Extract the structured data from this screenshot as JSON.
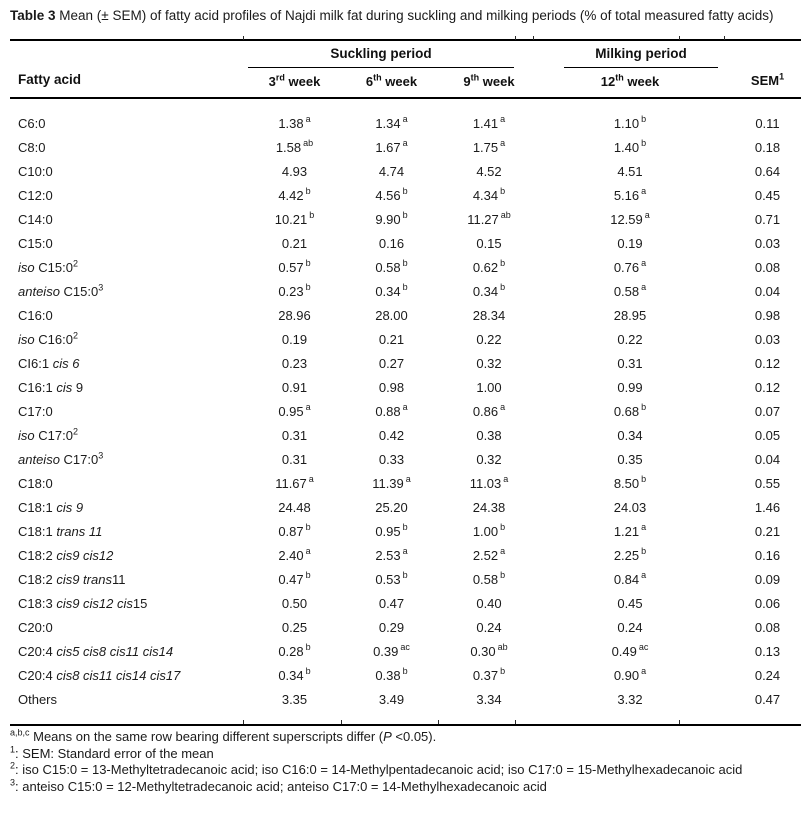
{
  "page": {
    "background": "#ffffff",
    "text_color": "#1a1a1a",
    "rule_color": "#000000"
  },
  "title": {
    "bold": "Table 3",
    "rest": " Mean (± SEM) of fatty acid profiles of Najdi milk fat during suckling and milking periods (% of total measured fatty acids)"
  },
  "table": {
    "header": {
      "fatty_acid": "Fatty acid",
      "groups": [
        {
          "label": "Suckling period",
          "span": 3
        },
        {
          "label": "Milking period",
          "span": 1
        }
      ],
      "weeks": [
        [
          {
            "t": "3"
          },
          {
            "t": "rd",
            "sup": true
          },
          {
            "t": " week"
          }
        ],
        [
          {
            "t": "6"
          },
          {
            "t": "th",
            "sup": true
          },
          {
            "t": " week"
          }
        ],
        [
          {
            "t": "9"
          },
          {
            "t": "th",
            "sup": true
          },
          {
            "t": " week"
          }
        ],
        [
          {
            "t": "12"
          },
          {
            "t": "th",
            "sup": true
          },
          {
            "t": " week"
          }
        ]
      ],
      "sem": [
        {
          "t": "SEM"
        },
        {
          "t": "1",
          "sup": true
        }
      ]
    },
    "rows": [
      {
        "label": [
          {
            "t": "C6:0"
          }
        ],
        "cells": [
          {
            "v": "1.38",
            "sup": "a"
          },
          {
            "v": "1.34",
            "sup": "a"
          },
          {
            "v": "1.41",
            "sup": "a"
          },
          {
            "v": "1.10",
            "sup": "b"
          },
          {
            "v": "0.11"
          }
        ]
      },
      {
        "label": [
          {
            "t": "C8:0"
          }
        ],
        "cells": [
          {
            "v": "1.58",
            "sup": "ab"
          },
          {
            "v": "1.67",
            "sup": "a"
          },
          {
            "v": "1.75",
            "sup": "a"
          },
          {
            "v": "1.40",
            "sup": "b"
          },
          {
            "v": "0.18"
          }
        ]
      },
      {
        "label": [
          {
            "t": "C10:0"
          }
        ],
        "cells": [
          {
            "v": "4.93"
          },
          {
            "v": "4.74"
          },
          {
            "v": "4.52"
          },
          {
            "v": "4.51"
          },
          {
            "v": "0.64"
          }
        ]
      },
      {
        "label": [
          {
            "t": "C12:0"
          }
        ],
        "cells": [
          {
            "v": "4.42",
            "sup": "b"
          },
          {
            "v": "4.56",
            "sup": "b"
          },
          {
            "v": "4.34",
            "sup": "b"
          },
          {
            "v": "5.16",
            "sup": "a"
          },
          {
            "v": "0.45"
          }
        ]
      },
      {
        "label": [
          {
            "t": "C14:0"
          }
        ],
        "cells": [
          {
            "v": "10.21",
            "sup": "b"
          },
          {
            "v": "9.90",
            "sup": "b"
          },
          {
            "v": "11.27",
            "sup": "ab"
          },
          {
            "v": "12.59",
            "sup": "a"
          },
          {
            "v": "0.71"
          }
        ]
      },
      {
        "label": [
          {
            "t": "C15:0"
          }
        ],
        "cells": [
          {
            "v": "0.21"
          },
          {
            "v": "0.16"
          },
          {
            "v": "0.15"
          },
          {
            "v": "0.19"
          },
          {
            "v": "0.03"
          }
        ]
      },
      {
        "label": [
          {
            "t": "iso ",
            "i": true
          },
          {
            "t": "C15:0"
          },
          {
            "t": "2",
            "sup": true
          }
        ],
        "cells": [
          {
            "v": "0.57",
            "sup": "b"
          },
          {
            "v": "0.58",
            "sup": "b"
          },
          {
            "v": "0.62",
            "sup": "b"
          },
          {
            "v": "0.76",
            "sup": "a"
          },
          {
            "v": "0.08"
          }
        ]
      },
      {
        "label": [
          {
            "t": "anteiso ",
            "i": true
          },
          {
            "t": "C15:0"
          },
          {
            "t": "3",
            "sup": true
          }
        ],
        "cells": [
          {
            "v": "0.23",
            "sup": "b"
          },
          {
            "v": "0.34",
            "sup": "b"
          },
          {
            "v": "0.34",
            "sup": "b"
          },
          {
            "v": "0.58",
            "sup": "a"
          },
          {
            "v": "0.04"
          }
        ]
      },
      {
        "label": [
          {
            "t": "C16:0"
          }
        ],
        "cells": [
          {
            "v": "28.96"
          },
          {
            "v": "28.00"
          },
          {
            "v": "28.34"
          },
          {
            "v": "28.95"
          },
          {
            "v": "0.98"
          }
        ]
      },
      {
        "label": [
          {
            "t": "iso ",
            "i": true
          },
          {
            "t": "C16:0"
          },
          {
            "t": "2",
            "sup": true
          }
        ],
        "cells": [
          {
            "v": "0.19"
          },
          {
            "v": "0.21"
          },
          {
            "v": "0.22"
          },
          {
            "v": "0.22"
          },
          {
            "v": "0.03"
          }
        ]
      },
      {
        "label": [
          {
            "t": "CI6:1 "
          },
          {
            "t": "cis 6",
            "i": true
          }
        ],
        "cells": [
          {
            "v": "0.23"
          },
          {
            "v": "0.27"
          },
          {
            "v": "0.32"
          },
          {
            "v": "0.31"
          },
          {
            "v": "0.12"
          }
        ]
      },
      {
        "label": [
          {
            "t": "C16:1 "
          },
          {
            "t": "cis",
            "i": true
          },
          {
            "t": " 9"
          }
        ],
        "cells": [
          {
            "v": "0.91"
          },
          {
            "v": "0.98"
          },
          {
            "v": "1.00"
          },
          {
            "v": "0.99"
          },
          {
            "v": "0.12"
          }
        ]
      },
      {
        "label": [
          {
            "t": "C17:0"
          }
        ],
        "cells": [
          {
            "v": "0.95",
            "sup": "a"
          },
          {
            "v": "0.88",
            "sup": "a"
          },
          {
            "v": "0.86",
            "sup": "a"
          },
          {
            "v": "0.68",
            "sup": "b"
          },
          {
            "v": "0.07"
          }
        ]
      },
      {
        "label": [
          {
            "t": "iso ",
            "i": true
          },
          {
            "t": "C17:0"
          },
          {
            "t": "2",
            "sup": true
          }
        ],
        "cells": [
          {
            "v": "0.31"
          },
          {
            "v": "0.42"
          },
          {
            "v": "0.38"
          },
          {
            "v": "0.34"
          },
          {
            "v": "0.05"
          }
        ]
      },
      {
        "label": [
          {
            "t": "anteiso ",
            "i": true
          },
          {
            "t": "C17:0"
          },
          {
            "t": "3",
            "sup": true
          }
        ],
        "cells": [
          {
            "v": "0.31"
          },
          {
            "v": "0.33"
          },
          {
            "v": "0.32"
          },
          {
            "v": "0.35"
          },
          {
            "v": "0.04"
          }
        ]
      },
      {
        "label": [
          {
            "t": "C18:0"
          }
        ],
        "cells": [
          {
            "v": "11.67",
            "sup": "a"
          },
          {
            "v": "11.39",
            "sup": "a"
          },
          {
            "v": "11.03",
            "sup": "a"
          },
          {
            "v": "8.50",
            "sup": "b"
          },
          {
            "v": "0.55"
          }
        ]
      },
      {
        "label": [
          {
            "t": "C18:1 "
          },
          {
            "t": "cis 9",
            "i": true
          }
        ],
        "cells": [
          {
            "v": "24.48"
          },
          {
            "v": "25.20"
          },
          {
            "v": "24.38"
          },
          {
            "v": "24.03"
          },
          {
            "v": "1.46"
          }
        ]
      },
      {
        "label": [
          {
            "t": "C18:1 "
          },
          {
            "t": "trans 11",
            "i": true
          }
        ],
        "cells": [
          {
            "v": "0.87",
            "sup": "b"
          },
          {
            "v": "0.95",
            "sup": "b"
          },
          {
            "v": "1.00",
            "sup": "b"
          },
          {
            "v": "1.21",
            "sup": "a"
          },
          {
            "v": "0.21"
          }
        ]
      },
      {
        "label": [
          {
            "t": "C18:2 "
          },
          {
            "t": "cis9 cis12",
            "i": true
          }
        ],
        "cells": [
          {
            "v": "2.40",
            "sup": "a"
          },
          {
            "v": "2.53",
            "sup": "a"
          },
          {
            "v": "2.52",
            "sup": "a"
          },
          {
            "v": "2.25",
            "sup": "b"
          },
          {
            "v": "0.16"
          }
        ]
      },
      {
        "label": [
          {
            "t": "C18:2 "
          },
          {
            "t": "cis9 trans",
            "i": true
          },
          {
            "t": "11"
          }
        ],
        "cells": [
          {
            "v": "0.47",
            "sup": "b"
          },
          {
            "v": "0.53",
            "sup": "b"
          },
          {
            "v": "0.58",
            "sup": "b"
          },
          {
            "v": "0.84",
            "sup": "a"
          },
          {
            "v": "0.09"
          }
        ]
      },
      {
        "label": [
          {
            "t": "C18:3 "
          },
          {
            "t": "cis9 cis12 cis",
            "i": true
          },
          {
            "t": "15"
          }
        ],
        "cells": [
          {
            "v": "0.50"
          },
          {
            "v": "0.47"
          },
          {
            "v": "0.40"
          },
          {
            "v": "0.45"
          },
          {
            "v": "0.06"
          }
        ]
      },
      {
        "label": [
          {
            "t": "C20:0"
          }
        ],
        "cells": [
          {
            "v": "0.25"
          },
          {
            "v": "0.29"
          },
          {
            "v": "0.24"
          },
          {
            "v": "0.24"
          },
          {
            "v": "0.08"
          }
        ]
      },
      {
        "label": [
          {
            "t": "C20:4 "
          },
          {
            "t": "cis5 cis8 cis11 cis14",
            "i": true
          }
        ],
        "cells": [
          {
            "v": "0.28",
            "sup": "b"
          },
          {
            "v": "0.39",
            "sup": "ac"
          },
          {
            "v": "0.30",
            "sup": "ab"
          },
          {
            "v": "0.49",
            "sup": "ac"
          },
          {
            "v": "0.13"
          }
        ]
      },
      {
        "label": [
          {
            "t": "C20:4 "
          },
          {
            "t": "cis8 cis11 cis14 cis17",
            "i": true
          }
        ],
        "cells": [
          {
            "v": "0.34",
            "sup": "b"
          },
          {
            "v": "0.38",
            "sup": "b"
          },
          {
            "v": "0.37",
            "sup": "b"
          },
          {
            "v": "0.90",
            "sup": "a"
          },
          {
            "v": "0.24"
          }
        ]
      },
      {
        "label": [
          {
            "t": "Others"
          }
        ],
        "cells": [
          {
            "v": "3.35"
          },
          {
            "v": "3.49"
          },
          {
            "v": "3.34"
          },
          {
            "v": "3.32"
          },
          {
            "v": "0.47"
          }
        ]
      }
    ]
  },
  "footnotes": [
    [
      {
        "t": "a,b,c",
        "sup": true
      },
      {
        "t": " Means on the same row bearing different superscripts differ ("
      },
      {
        "t": "P",
        "i": true
      },
      {
        "t": " <0.05)."
      }
    ],
    [
      {
        "t": "1",
        "sup": true
      },
      {
        "t": ": SEM: Standard error of the mean"
      }
    ],
    [
      {
        "t": "2",
        "sup": true
      },
      {
        "t": ": iso C15:0 = 13-Methyltetradecanoic acid; iso C16:0 = 14-Methylpentadecanoic acid; iso C17:0 = 15-Methylhexadecanoic acid"
      }
    ],
    [
      {
        "t": "3",
        "sup": true
      },
      {
        "t": ": anteiso C15:0 = 12-Methyltetradecanoic acid; anteiso C17:0 = 14-Methylhexadecanoic acid"
      }
    ]
  ]
}
